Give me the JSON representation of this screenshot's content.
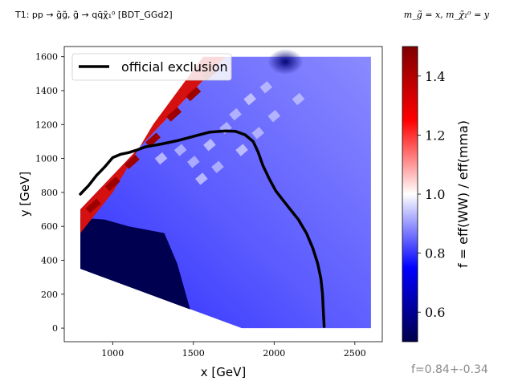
{
  "header": {
    "left": "T1: pp → g̃g̃, g̃ → qq̄χ̃₁⁰ [BDT_GGd2]",
    "right": "m_g̃ = x, m_χ̃₁⁰ = y"
  },
  "footer": {
    "stats": "f=0.84+-0.34"
  },
  "chart_data": {
    "type": "heatmap",
    "title": "",
    "xlabel": "x [GeV]",
    "ylabel": "y [GeV]",
    "xlim": [
      700,
      2670
    ],
    "ylim": [
      -80,
      1660
    ],
    "xticks": [
      "1000",
      "1500",
      "2000",
      "2500"
    ],
    "yticks": [
      "0",
      "200",
      "400",
      "600",
      "800",
      "1000",
      "1200",
      "1400",
      "1600"
    ],
    "grid": false,
    "legend": {
      "placement": "top-left",
      "entries": [
        {
          "label": "official exclusion",
          "color": "#000000"
        }
      ]
    },
    "colorbar": {
      "label": "f = eff(WW) / eff(mma)",
      "min": 0.5,
      "max": 1.5,
      "ticks": [
        "0.6",
        "0.8",
        "1.0",
        "1.2",
        "1.4"
      ],
      "colormap": "seismic"
    },
    "heatmap_regions": {
      "domain_outline": [
        [
          800,
          700
        ],
        [
          800,
          350
        ],
        [
          1800,
          0
        ],
        [
          2600,
          0
        ],
        [
          2600,
          1600
        ],
        [
          1700,
          1600
        ]
      ],
      "dark_blue_region": [
        [
          800,
          650
        ],
        [
          800,
          350
        ],
        [
          1480,
          110
        ],
        [
          1400,
          380
        ],
        [
          1320,
          560
        ],
        [
          1100,
          600
        ],
        [
          950,
          640
        ]
      ],
      "red_band": [
        [
          800,
          700
        ],
        [
          1700,
          1600
        ],
        [
          1560,
          1600
        ],
        [
          1250,
          1200
        ],
        [
          1000,
          800
        ],
        [
          800,
          560
        ]
      ],
      "top_dark_blob": {
        "x": 2070,
        "y": 1570,
        "value": 0.5
      }
    },
    "series": [
      {
        "name": "official exclusion",
        "type": "line",
        "color": "#000000",
        "points": [
          [
            800,
            790
          ],
          [
            850,
            840
          ],
          [
            900,
            900
          ],
          [
            950,
            950
          ],
          [
            1000,
            1005
          ],
          [
            1050,
            1025
          ],
          [
            1100,
            1035
          ],
          [
            1150,
            1050
          ],
          [
            1200,
            1068
          ],
          [
            1300,
            1085
          ],
          [
            1400,
            1105
          ],
          [
            1500,
            1130
          ],
          [
            1600,
            1155
          ],
          [
            1700,
            1162
          ],
          [
            1760,
            1160
          ],
          [
            1820,
            1140
          ],
          [
            1870,
            1100
          ],
          [
            1900,
            1040
          ],
          [
            1930,
            960
          ],
          [
            1970,
            880
          ],
          [
            2010,
            810
          ],
          [
            2050,
            760
          ],
          [
            2100,
            700
          ],
          [
            2150,
            640
          ],
          [
            2200,
            560
          ],
          [
            2240,
            470
          ],
          [
            2270,
            380
          ],
          [
            2290,
            290
          ],
          [
            2300,
            200
          ],
          [
            2305,
            100
          ],
          [
            2310,
            10
          ]
        ]
      }
    ]
  }
}
